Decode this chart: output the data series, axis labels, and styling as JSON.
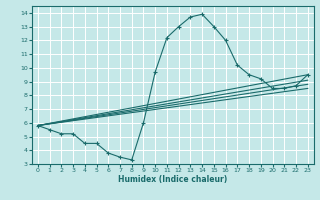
{
  "xlabel": "Humidex (Indice chaleur)",
  "bg_color": "#c5e8e8",
  "grid_color": "#b0d8d8",
  "line_color": "#1a6b6b",
  "xlim": [
    -0.5,
    23.5
  ],
  "ylim": [
    3,
    14.5
  ],
  "xticks": [
    0,
    1,
    2,
    3,
    4,
    5,
    6,
    7,
    8,
    9,
    10,
    11,
    12,
    13,
    14,
    15,
    16,
    17,
    18,
    19,
    20,
    21,
    22,
    23
  ],
  "yticks": [
    3,
    4,
    5,
    6,
    7,
    8,
    9,
    10,
    11,
    12,
    13,
    14
  ],
  "main_x": [
    0,
    1,
    2,
    3,
    4,
    5,
    6,
    7,
    8,
    9,
    10,
    11,
    12,
    13,
    14,
    15,
    16,
    17,
    18,
    19,
    20,
    21,
    22,
    23
  ],
  "main_y": [
    5.8,
    5.5,
    5.2,
    5.2,
    4.5,
    4.5,
    3.8,
    3.5,
    3.3,
    6.0,
    9.7,
    12.2,
    13.0,
    13.7,
    13.9,
    13.0,
    12.0,
    10.2,
    9.5,
    9.2,
    8.5,
    8.5,
    8.7,
    9.5
  ],
  "line2_x": [
    0,
    23
  ],
  "line2_y": [
    5.8,
    8.5
  ],
  "line3_x": [
    0,
    23
  ],
  "line3_y": [
    5.8,
    8.8
  ],
  "line4_x": [
    0,
    23
  ],
  "line4_y": [
    5.8,
    9.1
  ],
  "line5_x": [
    0,
    23
  ],
  "line5_y": [
    5.8,
    9.5
  ]
}
